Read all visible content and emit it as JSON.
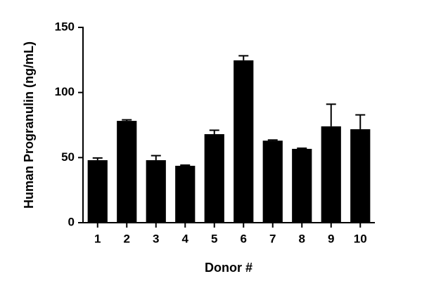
{
  "chart_data": {
    "type": "bar",
    "xlabel": "Donor #",
    "ylabel": "Human Progranulin (ng/mL)",
    "categories": [
      "1",
      "2",
      "3",
      "4",
      "5",
      "6",
      "7",
      "8",
      "9",
      "10"
    ],
    "values": [
      48,
      78.2,
      48,
      43.7,
      68,
      124.7,
      63,
      56.7,
      74,
      71.8
    ],
    "errors": [
      1.7,
      0.8,
      3.5,
      0.5,
      3,
      3.5,
      0.5,
      0.5,
      17,
      11
    ],
    "color": "#000000",
    "ylim": [
      0,
      150
    ],
    "yticks": [
      0,
      50,
      100,
      150
    ],
    "grid": false
  }
}
